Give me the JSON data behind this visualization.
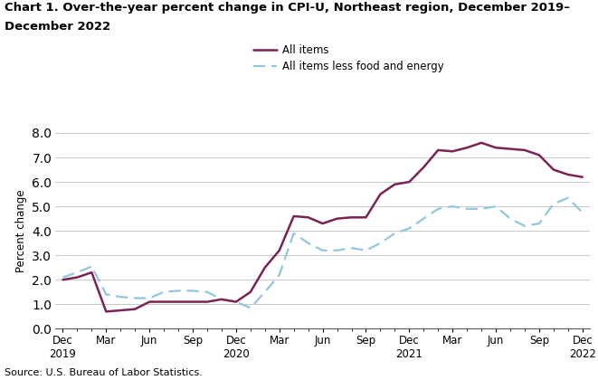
{
  "title_line1": "Chart 1. Over-the-year percent change in CPI-U, Northeast region, December 2019–",
  "title_line2": "December 2022",
  "ylabel": "Percent change",
  "source": "Source: U.S. Bureau of Labor Statistics.",
  "ylim": [
    0.0,
    8.0
  ],
  "yticks": [
    0.0,
    1.0,
    2.0,
    3.0,
    4.0,
    5.0,
    6.0,
    7.0,
    8.0
  ],
  "all_items_color": "#7B2355",
  "core_color": "#92C5DE",
  "all_items_label": "All items",
  "core_label": "All items less food and energy",
  "tick_positions": [
    0,
    3,
    6,
    9,
    12,
    15,
    18,
    21,
    24,
    27,
    30,
    33,
    36
  ],
  "tick_labels": [
    "Dec\n2019",
    "Mar",
    "Jun",
    "Sep",
    "Dec\n2020",
    "Mar",
    "Jun",
    "Sep",
    "Dec\n2021",
    "Mar",
    "Jun",
    "Sep",
    "Dec\n2022"
  ],
  "all_items": [
    2.0,
    2.1,
    2.3,
    0.7,
    0.75,
    0.8,
    1.1,
    1.1,
    1.1,
    1.1,
    1.1,
    1.2,
    1.1,
    1.5,
    2.5,
    3.2,
    4.6,
    4.55,
    4.3,
    4.5,
    4.55,
    4.55,
    5.5,
    5.9,
    6.0,
    6.6,
    7.3,
    7.25,
    7.4,
    7.6,
    7.4,
    7.35,
    7.3,
    7.1,
    6.5,
    6.3,
    6.2
  ],
  "core": [
    2.1,
    2.3,
    2.55,
    1.4,
    1.3,
    1.25,
    1.25,
    1.5,
    1.55,
    1.55,
    1.5,
    1.2,
    1.1,
    0.85,
    1.5,
    2.2,
    3.9,
    3.5,
    3.2,
    3.2,
    3.3,
    3.2,
    3.5,
    3.9,
    4.1,
    4.5,
    4.9,
    5.0,
    4.9,
    4.9,
    5.0,
    4.5,
    4.2,
    4.3,
    5.1,
    5.35,
    4.75
  ]
}
